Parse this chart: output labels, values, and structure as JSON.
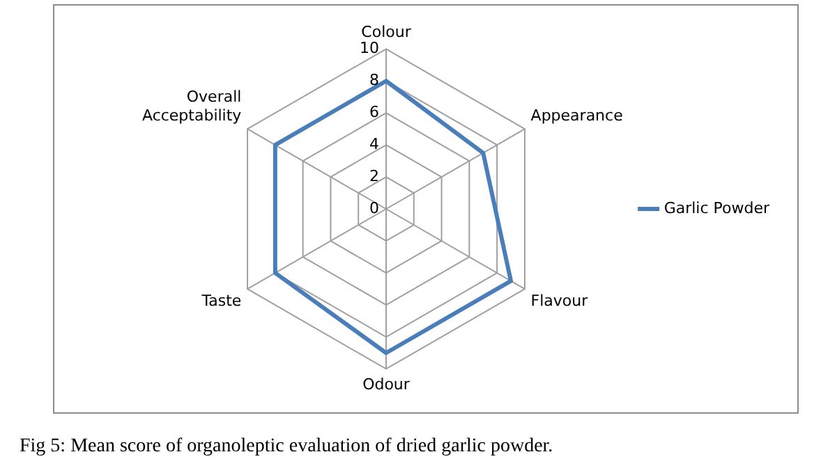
{
  "chart_data": {
    "type": "radar",
    "categories": [
      "Colour",
      "Appearance",
      "Flavour",
      "Odour",
      "Taste",
      "Overall Acceptability"
    ],
    "series": [
      {
        "name": "Garlic Powder",
        "color": "#4a7ebb",
        "values": [
          8,
          7,
          9,
          9,
          8,
          8
        ]
      }
    ],
    "ylim": [
      0,
      10
    ],
    "yticks": [
      0,
      2,
      4,
      6,
      8,
      10
    ],
    "grid": true,
    "legend": "right",
    "marker": "none",
    "annotations": [
      "Fig 5: Mean score of organoleptic evaluation of dried garlic powder."
    ]
  }
}
